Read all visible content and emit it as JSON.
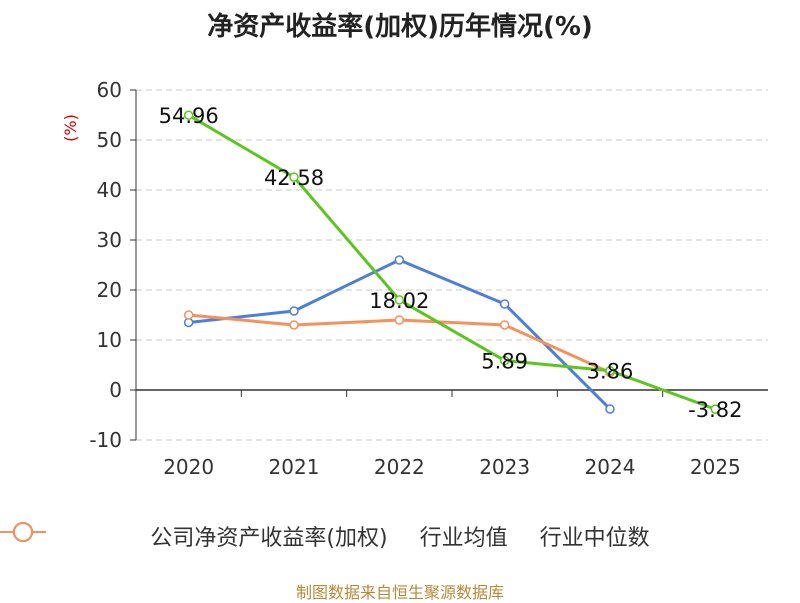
{
  "chart_data": {
    "type": "line",
    "title": "净资产收益率(加权)历年情况(%)",
    "ylabel": "(%)",
    "xlabel": "",
    "categories": [
      "2020",
      "2021",
      "2022",
      "2023",
      "2024",
      "2025"
    ],
    "ylim": [
      -10,
      60
    ],
    "yticks": [
      -10,
      0,
      10,
      20,
      30,
      40,
      50,
      60
    ],
    "grid": true,
    "legend_position": "bottom",
    "series": [
      {
        "name": "公司净资产收益率(加权)",
        "color": "#5cc51e",
        "values": [
          54.96,
          42.58,
          18.02,
          5.89,
          3.86,
          -3.82
        ],
        "labels": [
          "54.96",
          "42.58",
          "18.02",
          "5.89",
          "3.86",
          "-3.82"
        ]
      },
      {
        "name": "行业均值",
        "color": "#4e7fd8",
        "values": [
          13.5,
          15.8,
          26.0,
          17.2,
          -3.8,
          null
        ]
      },
      {
        "name": "行业中位数",
        "color": "#f4915c",
        "values": [
          15.0,
          13.0,
          14.0,
          13.0,
          3.5,
          null
        ]
      }
    ]
  },
  "source": "制图数据来自恒生聚源数据库"
}
